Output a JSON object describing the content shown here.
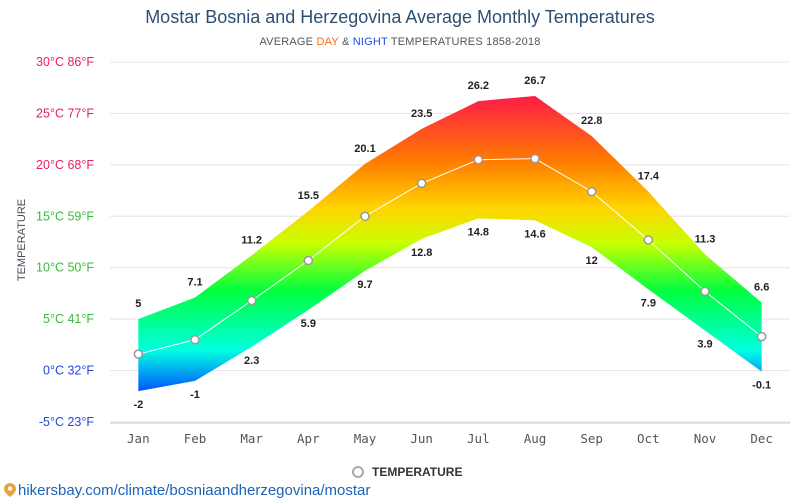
{
  "title": "Mostar Bosnia and Herzegovina Average Monthly Temperatures",
  "subtitle": {
    "prefix": "AVERAGE ",
    "day": "DAY",
    "mid": " & ",
    "night": "NIGHT",
    "suffix": " TEMPERATURES 1858-2018"
  },
  "legend": {
    "label": "TEMPERATURE",
    "icon": "circle-marker-icon"
  },
  "source": {
    "text": "hikersbay.com/climate/bosniaandherzegovina/mostar",
    "icon": "map-pin-icon"
  },
  "colors": {
    "title": "#2d4f73",
    "day_accent": "#ff6a00",
    "night_accent": "#1a50e6",
    "link": "#1c63b7",
    "gradient_stops": [
      "#ff1a4a",
      "#ff7a00",
      "#ffd400",
      "#c8ff00",
      "#00ff40",
      "#00ffe0",
      "#0050ff"
    ]
  },
  "chart_data": {
    "type": "area",
    "title": "Mostar Bosnia and Herzegovina Average Monthly Temperatures",
    "ylabel": "TEMPERATURE",
    "xlabel": "",
    "categories": [
      "Jan",
      "Feb",
      "Mar",
      "Apr",
      "May",
      "Jun",
      "Jul",
      "Aug",
      "Sep",
      "Oct",
      "Nov",
      "Dec"
    ],
    "y_ticks": [
      {
        "value": 30,
        "label": "30°C 86°F",
        "color": "#e6215a"
      },
      {
        "value": 25,
        "label": "25°C 77°F",
        "color": "#e6215a"
      },
      {
        "value": 20,
        "label": "20°C 68°F",
        "color": "#e6215a"
      },
      {
        "value": 15,
        "label": "15°C 59°F",
        "color": "#3cb93c"
      },
      {
        "value": 10,
        "label": "10°C 50°F",
        "color": "#3cb93c"
      },
      {
        "value": 5,
        "label": "5°C 41°F",
        "color": "#3cb93c"
      },
      {
        "value": 0,
        "label": "0°C 32°F",
        "color": "#2247d8"
      },
      {
        "value": -5,
        "label": "-5°C 23°F",
        "color": "#2247d8"
      }
    ],
    "ylim": [
      -5,
      30
    ],
    "grid": true,
    "legend_position": "bottom-center",
    "series": [
      {
        "name": "DAY",
        "values": [
          5,
          7.1,
          11.2,
          15.5,
          20.1,
          23.5,
          26.2,
          26.7,
          22.8,
          17.4,
          11.3,
          6.6
        ]
      },
      {
        "name": "NIGHT",
        "values": [
          -2,
          -1,
          2.3,
          5.9,
          9.7,
          12.8,
          14.8,
          14.6,
          12,
          7.9,
          3.9,
          -0.1
        ]
      },
      {
        "name": "TEMPERATURE",
        "values": [
          1.6,
          3.0,
          6.8,
          10.7,
          15.0,
          18.2,
          20.5,
          20.6,
          17.4,
          12.7,
          7.7,
          3.3
        ]
      }
    ]
  }
}
